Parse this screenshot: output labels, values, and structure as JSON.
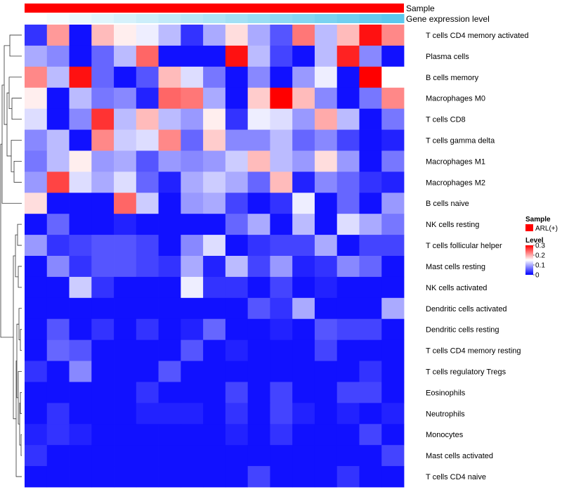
{
  "chart_data": {
    "type": "heatmap",
    "title": "",
    "annotation_tracks": [
      {
        "label": "Sample",
        "color": "#ff0000"
      },
      {
        "label": "Gene expression level",
        "gradient": [
          "#ffffff",
          "#5bc8ee"
        ]
      }
    ],
    "rows": [
      "T cells CD4 memory activated",
      "Plasma cells",
      "B cells memory",
      "Macrophages M0",
      "T cells CD8",
      "T cells gamma delta",
      "Macrophages M1",
      "Macrophages M2",
      "B cells naive",
      "NK cells resting",
      "T cells follicular helper",
      "Mast cells resting",
      "NK cells activated",
      "Dendritic cells activated",
      "Dendritic cells resting",
      "T cells CD4 memory resting",
      "T cells regulatory  Tregs",
      "Eosinophils",
      "Neutrophils",
      "Monocytes",
      "Mast cells activated",
      "T cells CD4 naive"
    ],
    "n_columns": 17,
    "values": [
      [
        0.03,
        0.21,
        0.01,
        0.19,
        0.16,
        0.14,
        0.11,
        0.03,
        0.1,
        0.17,
        0.1,
        0.05,
        0.23,
        0.11,
        0.19,
        0.29,
        0.22
      ],
      [
        0.1,
        0.08,
        0.01,
        0.06,
        0.11,
        0.24,
        0.01,
        0.01,
        0.01,
        0.29,
        0.11,
        0.04,
        0.01,
        0.11,
        0.28,
        0.08,
        0.01
      ],
      [
        0.22,
        0.11,
        0.29,
        0.06,
        0.01,
        0.05,
        0.19,
        0.13,
        0.07,
        0.01,
        0.08,
        0.01,
        0.09,
        0.14,
        0.01,
        0.3,
        0.15
      ],
      [
        0.16,
        0.01,
        0.11,
        0.07,
        0.08,
        0.02,
        0.24,
        0.23,
        0.1,
        0.01,
        0.18,
        0.3,
        0.19,
        0.08,
        0.01,
        0.07,
        0.22
      ],
      [
        0.13,
        0.01,
        0.08,
        0.27,
        0.11,
        0.19,
        0.11,
        0.09,
        0.16,
        0.03,
        0.14,
        0.13,
        0.09,
        0.2,
        0.11,
        0.01,
        0.07
      ],
      [
        0.08,
        0.11,
        0.01,
        0.22,
        0.12,
        0.13,
        0.22,
        0.06,
        0.18,
        0.08,
        0.08,
        0.11,
        0.06,
        0.08,
        0.04,
        0.01,
        0.02
      ],
      [
        0.07,
        0.11,
        0.16,
        0.09,
        0.1,
        0.05,
        0.09,
        0.08,
        0.09,
        0.12,
        0.19,
        0.11,
        0.09,
        0.17,
        0.09,
        0.01,
        0.07
      ],
      [
        0.09,
        0.26,
        0.13,
        0.1,
        0.13,
        0.06,
        0.02,
        0.1,
        0.12,
        0.1,
        0.06,
        0.19,
        0.02,
        0.08,
        0.06,
        0.03,
        0.02
      ],
      [
        0.17,
        0.01,
        0.01,
        0.01,
        0.24,
        0.12,
        0.01,
        0.09,
        0.1,
        0.04,
        0.01,
        0.03,
        0.14,
        0.01,
        0.06,
        0.01,
        0.09
      ],
      [
        0.01,
        0.06,
        0.01,
        0.01,
        0.02,
        0.01,
        0.01,
        0.01,
        0.01,
        0.06,
        0.1,
        0.01,
        0.11,
        0.01,
        0.13,
        0.1,
        0.07
      ],
      [
        0.09,
        0.03,
        0.04,
        0.05,
        0.05,
        0.04,
        0.01,
        0.08,
        0.13,
        0.01,
        0.03,
        0.04,
        0.04,
        0.1,
        0.01,
        0.04,
        0.04
      ],
      [
        0.01,
        0.08,
        0.03,
        0.05,
        0.05,
        0.04,
        0.03,
        0.1,
        0.02,
        0.11,
        0.04,
        0.09,
        0.02,
        0.03,
        0.08,
        0.06,
        0.01
      ],
      [
        0.01,
        0.01,
        0.12,
        0.03,
        0.01,
        0.01,
        0.01,
        0.14,
        0.03,
        0.03,
        0.01,
        0.04,
        0.01,
        0.02,
        0.01,
        0.01,
        0.01
      ],
      [
        0.01,
        0.01,
        0.01,
        0.01,
        0.01,
        0.01,
        0.01,
        0.01,
        0.01,
        0.01,
        0.05,
        0.03,
        0.1,
        0.01,
        0.01,
        0.01,
        0.1
      ],
      [
        0.01,
        0.05,
        0.01,
        0.03,
        0.01,
        0.03,
        0.01,
        0.02,
        0.06,
        0.01,
        0.01,
        0.02,
        0.01,
        0.05,
        0.04,
        0.04,
        0.01
      ],
      [
        0.01,
        0.06,
        0.05,
        0.01,
        0.01,
        0.01,
        0.01,
        0.05,
        0.01,
        0.02,
        0.01,
        0.01,
        0.01,
        0.04,
        0.01,
        0.01,
        0.01
      ],
      [
        0.03,
        0.01,
        0.08,
        0.01,
        0.01,
        0.01,
        0.05,
        0.01,
        0.01,
        0.01,
        0.01,
        0.01,
        0.01,
        0.01,
        0.01,
        0.03,
        0.01
      ],
      [
        0.01,
        0.01,
        0.01,
        0.01,
        0.01,
        0.03,
        0.01,
        0.01,
        0.01,
        0.04,
        0.01,
        0.04,
        0.01,
        0.01,
        0.04,
        0.04,
        0.01
      ],
      [
        0.01,
        0.03,
        0.01,
        0.01,
        0.01,
        0.02,
        0.02,
        0.02,
        0.01,
        0.03,
        0.01,
        0.04,
        0.02,
        0.01,
        0.02,
        0.01,
        0.02
      ],
      [
        0.02,
        0.03,
        0.02,
        0.01,
        0.01,
        0.01,
        0.01,
        0.01,
        0.01,
        0.02,
        0.01,
        0.03,
        0.01,
        0.01,
        0.01,
        0.04,
        0.01
      ],
      [
        0.03,
        0.01,
        0.01,
        0.01,
        0.01,
        0.01,
        0.01,
        0.01,
        0.01,
        0.01,
        0.01,
        0.01,
        0.01,
        0.01,
        0.01,
        0.01,
        0.04
      ],
      [
        0.01,
        0.01,
        0.01,
        0.01,
        0.01,
        0.01,
        0.01,
        0.01,
        0.01,
        0.01,
        0.04,
        0.01,
        0.01,
        0.01,
        0.03,
        0.01,
        0.01
      ]
    ],
    "color_scale": {
      "min": 0,
      "max": 0.3,
      "low": "#0000ff",
      "mid": "#ffffff",
      "high": "#ff0000",
      "mid_value": 0.15
    },
    "legend": {
      "placement": "right",
      "sample_title": "Sample",
      "sample_entry": "ARL(+)",
      "sample_color": "#ff0000",
      "level_title": "Level",
      "level_ticks": [
        "0.3",
        "0.2",
        "0.1",
        "0"
      ],
      "level_tick_values": [
        0.3,
        0.2,
        0.1,
        0
      ]
    }
  }
}
